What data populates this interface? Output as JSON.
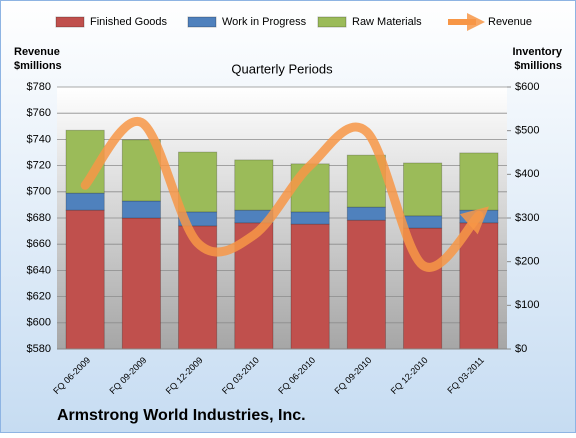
{
  "chart_data": {
    "type": "stacked-bar-line",
    "title": "Armstrong World Industries, Inc.",
    "subtitle": "Quarterly Periods",
    "y_label": [
      "Revenue",
      "$millions"
    ],
    "y2_label": [
      "Inventory",
      "$millions"
    ],
    "categories": [
      "FQ 06-2009",
      "FQ 09-2009",
      "FQ 12-2009",
      "FQ 03-2010",
      "FQ 06-2010",
      "FQ 09-2010",
      "FQ 12-2010",
      "FQ 03-2011"
    ],
    "ylim": [
      580,
      780
    ],
    "yticks": [
      {
        "value": 580,
        "label": "$580"
      },
      {
        "value": 600,
        "label": "$600"
      },
      {
        "value": 620,
        "label": "$620"
      },
      {
        "value": 640,
        "label": "$640"
      },
      {
        "value": 660,
        "label": "$660"
      },
      {
        "value": 680,
        "label": "$680"
      },
      {
        "value": 700,
        "label": "$700"
      },
      {
        "value": 720,
        "label": "$720"
      },
      {
        "value": 740,
        "label": "$740"
      },
      {
        "value": 760,
        "label": "$760"
      },
      {
        "value": 780,
        "label": "$780"
      }
    ],
    "y2lim": [
      0,
      600
    ],
    "y2ticks": [
      {
        "value": 0,
        "label": "$0"
      },
      {
        "value": 100,
        "label": "$100"
      },
      {
        "value": 200,
        "label": "$200"
      },
      {
        "value": 300,
        "label": "$300"
      },
      {
        "value": 400,
        "label": "$400"
      },
      {
        "value": 500,
        "label": "$500"
      },
      {
        "value": 600,
        "label": "$600"
      }
    ],
    "grid": true,
    "legend": "top",
    "series": [
      {
        "name": "Finished Goods",
        "color": "#c0504d",
        "type": "bar",
        "axis": "y2",
        "values": [
          318,
          300,
          282,
          289,
          286,
          295,
          277,
          289
        ]
      },
      {
        "name": "Work in Progress",
        "color": "#4f81bd",
        "type": "bar",
        "axis": "y2",
        "values": [
          39,
          39,
          32,
          29,
          28,
          30,
          28,
          29
        ]
      },
      {
        "name": "Raw Materials",
        "color": "#9bbb59",
        "type": "bar",
        "axis": "y2",
        "values": [
          144,
          140,
          137,
          115,
          110,
          119,
          121,
          131
        ]
      },
      {
        "name": "Revenue",
        "color": "#f79646",
        "type": "line",
        "values": [
          705,
          753,
          661,
          667,
          720,
          746,
          644,
          682
        ]
      }
    ]
  }
}
